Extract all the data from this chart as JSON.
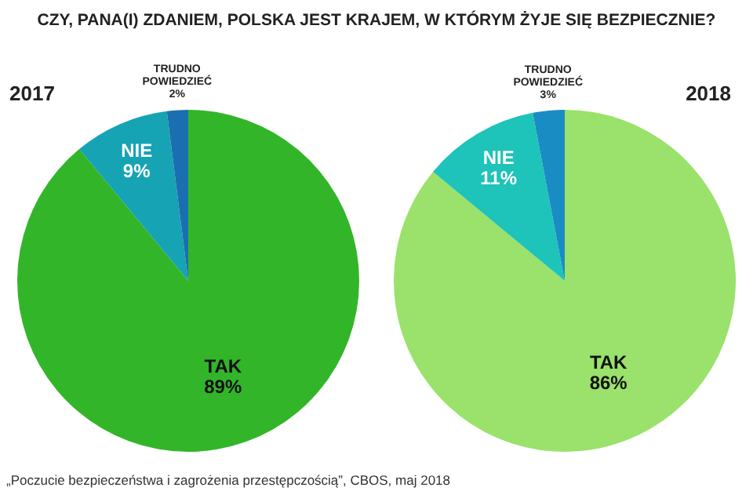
{
  "chart_data": [
    {
      "type": "pie",
      "title": "CZY, PANA(I) ZDANIEM, POLSKA JEST KRAJEM, W KTÓRYM ŻYJE SIĘ BEZPIECZNIE?",
      "subtitle": "2017",
      "categories": [
        "TAK",
        "NIE",
        "TRUDNO POWIEDZIEĆ"
      ],
      "values": [
        89,
        9,
        2
      ],
      "value_labels": [
        "89%",
        "9%",
        "2%"
      ],
      "colors": [
        "#33b52a",
        "#16a3b3",
        "#1a6fb0"
      ]
    },
    {
      "type": "pie",
      "subtitle": "2018",
      "categories": [
        "TAK",
        "NIE",
        "TRUDNO POWIEDZIEĆ"
      ],
      "values": [
        86,
        11,
        3
      ],
      "value_labels": [
        "86%",
        "11%",
        "3%"
      ],
      "colors": [
        "#9ae26b",
        "#1ec3b9",
        "#1a8cc4"
      ],
      "annotations": [
        "„Poczucie bezpieczeństwa i zagrożenia przestępczością”, CBOS, maj 2018"
      ]
    }
  ]
}
